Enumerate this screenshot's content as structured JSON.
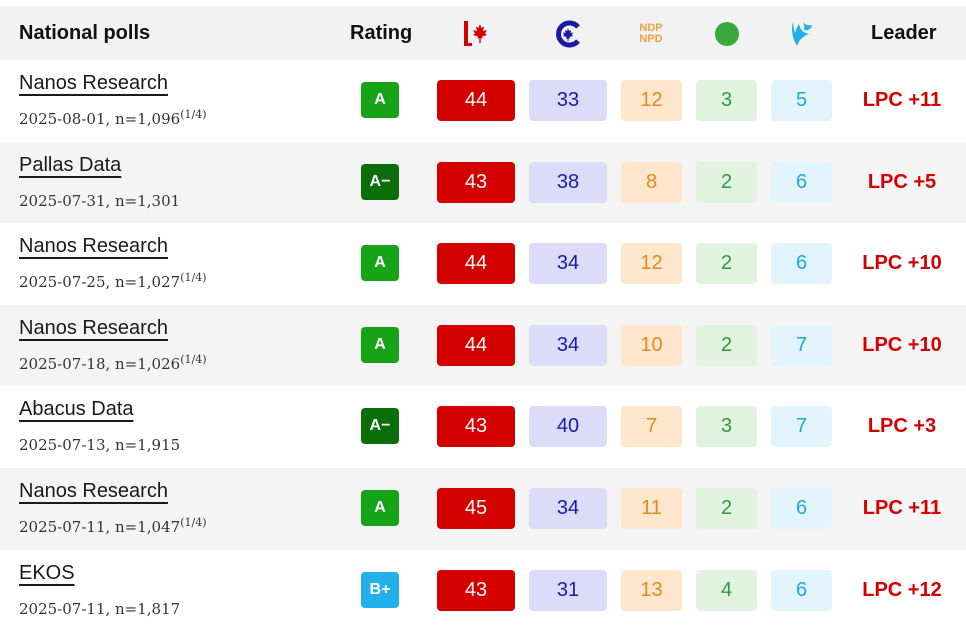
{
  "header": {
    "title": "National polls",
    "rating": "Rating",
    "leader": "Leader",
    "ndp_line1": "NDP",
    "ndp_line2": "NPD",
    "party_icons": [
      "liberal-icon",
      "conservative-icon",
      "ndp-icon",
      "green-icon",
      "bloc-icon"
    ]
  },
  "colors": {
    "lpc": "#d40000",
    "cpc": "#1a1aa8",
    "ndp": "#e08a1c",
    "green": "#2f9a3a",
    "bq": "#1ea8e0",
    "rating_a": "#17a317",
    "rating_a_minus": "#0b6e0b",
    "rating_b_plus": "#22b0ea"
  },
  "rows": [
    {
      "pollster": "Nanos Research",
      "date_n": "2025-08-01, n=1,096",
      "sup": "(1/4)",
      "rating": "A",
      "rating_color": "#17a317",
      "lpc": "44",
      "cpc": "33",
      "ndp": "12",
      "grn": "3",
      "bq": "5",
      "leader": "LPC +11"
    },
    {
      "pollster": "Pallas Data",
      "date_n": "2025-07-31, n=1,301",
      "sup": "",
      "rating": "A−",
      "rating_color": "#0b6e0b",
      "lpc": "43",
      "cpc": "38",
      "ndp": "8",
      "grn": "2",
      "bq": "6",
      "leader": "LPC +5"
    },
    {
      "pollster": "Nanos Research",
      "date_n": "2025-07-25, n=1,027",
      "sup": "(1/4)",
      "rating": "A",
      "rating_color": "#17a317",
      "lpc": "44",
      "cpc": "34",
      "ndp": "12",
      "grn": "2",
      "bq": "6",
      "leader": "LPC +10"
    },
    {
      "pollster": "Nanos Research",
      "date_n": "2025-07-18, n=1,026",
      "sup": "(1/4)",
      "rating": "A",
      "rating_color": "#17a317",
      "lpc": "44",
      "cpc": "34",
      "ndp": "10",
      "grn": "2",
      "bq": "7",
      "leader": "LPC +10"
    },
    {
      "pollster": "Abacus Data",
      "date_n": "2025-07-13, n=1,915",
      "sup": "",
      "rating": "A−",
      "rating_color": "#0b6e0b",
      "lpc": "43",
      "cpc": "40",
      "ndp": "7",
      "grn": "3",
      "bq": "7",
      "leader": "LPC +3"
    },
    {
      "pollster": "Nanos Research",
      "date_n": "2025-07-11, n=1,047",
      "sup": "(1/4)",
      "rating": "A",
      "rating_color": "#17a317",
      "lpc": "45",
      "cpc": "34",
      "ndp": "11",
      "grn": "2",
      "bq": "6",
      "leader": "LPC +11"
    },
    {
      "pollster": "EKOS",
      "date_n": "2025-07-11, n=1,817",
      "sup": "",
      "rating": "B+",
      "rating_color": "#22b0ea",
      "lpc": "43",
      "cpc": "31",
      "ndp": "13",
      "grn": "4",
      "bq": "6",
      "leader": "LPC +12"
    }
  ]
}
